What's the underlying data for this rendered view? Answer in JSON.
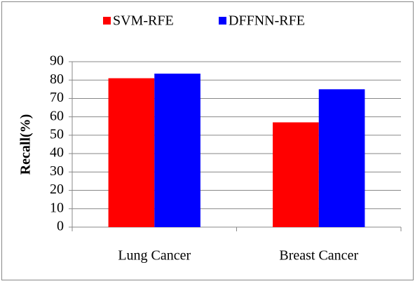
{
  "chart_data": {
    "type": "bar",
    "categories": [
      "Lung Cancer",
      "Breast Cancer"
    ],
    "series": [
      {
        "name": "SVM-RFE",
        "color": "#ff0000",
        "values": [
          81,
          57
        ]
      },
      {
        "name": "DFFNN-RFE",
        "color": "#0000ff",
        "values": [
          83.5,
          75
        ]
      }
    ],
    "y_label": "Recall(%)",
    "ylim": [
      0,
      90
    ],
    "yticks": [
      0,
      10,
      20,
      30,
      40,
      50,
      60,
      70,
      80,
      90
    ],
    "grid": true,
    "legend": "top"
  }
}
